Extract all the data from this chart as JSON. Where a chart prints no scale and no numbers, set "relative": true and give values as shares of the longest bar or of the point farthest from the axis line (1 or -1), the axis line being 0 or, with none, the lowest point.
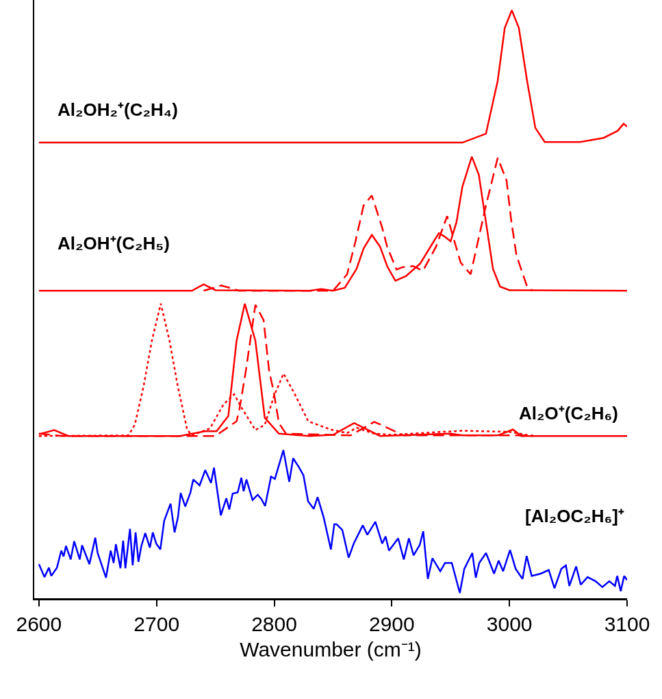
{
  "chart_data": {
    "type": "line",
    "relative": true,
    "xlabel": "Wavenumber (cm⁻¹)",
    "xlim": [
      2596,
      3100
    ],
    "xticks": [
      2600,
      2700,
      2800,
      2900,
      3000,
      3100
    ],
    "grid": false,
    "marker": "none",
    "annotations": [
      "Al₂OH₂⁺(C₂H₄)",
      "Al₂OH⁺(C₂H₅)",
      "Al₂O⁺(C₂H₆)",
      "[Al₂OC₂H₆]⁺"
    ],
    "series": [
      {
        "color": "#ff0000",
        "line_style": "solid",
        "x": [
          2600,
          2960,
          2980,
          2990,
          2996,
          3002,
          3008,
          3015,
          3022,
          3030,
          3060,
          3080,
          3092,
          3097,
          3100
        ],
        "values": [
          0.775,
          0.775,
          0.79,
          0.88,
          0.97,
          1.0,
          0.97,
          0.88,
          0.8,
          0.776,
          0.776,
          0.783,
          0.795,
          0.807,
          0.802
        ]
      },
      {
        "color": "#ff0000",
        "line_style": "solid",
        "x": [
          2600,
          2730,
          2740,
          2750,
          2830,
          2840,
          2850,
          2860,
          2870,
          2876,
          2883,
          2890,
          2896,
          2903,
          2912,
          2924,
          2932,
          2940,
          2945,
          2950,
          2955,
          2960,
          2968,
          2974,
          2980,
          2986,
          2992,
          3000,
          3100
        ],
        "values": [
          0.523,
          0.523,
          0.534,
          0.524,
          0.523,
          0.526,
          0.523,
          0.528,
          0.56,
          0.595,
          0.618,
          0.598,
          0.565,
          0.54,
          0.548,
          0.569,
          0.595,
          0.621,
          0.615,
          0.607,
          0.64,
          0.7,
          0.751,
          0.72,
          0.64,
          0.56,
          0.53,
          0.524,
          0.523
        ]
      },
      {
        "color": "#ff0000",
        "line_style": "dashed",
        "x": [
          2740,
          2755,
          2762,
          2770,
          2850,
          2862,
          2869,
          2876,
          2883,
          2892,
          2896,
          2904,
          2909,
          2918,
          2926.5,
          2937.6,
          2947,
          2958.5,
          2967,
          2980,
          2990,
          2997.5,
          3001.6,
          3006,
          3015,
          3020
        ],
        "values": [
          0.523,
          0.532,
          0.528,
          0.523,
          0.523,
          0.551,
          0.606,
          0.668,
          0.685,
          0.629,
          0.598,
          0.559,
          0.563,
          0.565,
          0.557,
          0.598,
          0.65,
          0.571,
          0.551,
          0.668,
          0.749,
          0.711,
          0.641,
          0.583,
          0.53,
          0.523
        ]
      },
      {
        "color": "#ff0000",
        "line_style": "solid",
        "x": [
          2600,
          2613,
          2625,
          2720,
          2741,
          2751,
          2761,
          2768,
          2775,
          2784,
          2792,
          2804,
          2830,
          2850,
          2868,
          2890,
          2950,
          2960,
          2990,
          3003,
          3010,
          3100
        ],
        "values": [
          0.279,
          0.286,
          0.276,
          0.276,
          0.284,
          0.284,
          0.31,
          0.438,
          0.501,
          0.438,
          0.307,
          0.28,
          0.276,
          0.278,
          0.298,
          0.276,
          0.28,
          0.277,
          0.277,
          0.287,
          0.276,
          0.276
        ]
      },
      {
        "color": "#ff0000",
        "line_style": "dashed",
        "x": [
          2600,
          2620,
          2750,
          2768,
          2770.5,
          2776,
          2784,
          2791,
          2795.6,
          2799.7,
          2804,
          2810,
          2865,
          2885,
          2893,
          2910,
          3020
        ],
        "values": [
          0.28,
          0.276,
          0.276,
          0.301,
          0.322,
          0.388,
          0.499,
          0.473,
          0.388,
          0.35,
          0.298,
          0.28,
          0.277,
          0.3,
          0.293,
          0.277,
          0.277
        ]
      },
      {
        "color": "#ff0000",
        "line_style": "dotted",
        "x": [
          2600,
          2676,
          2681.5,
          2689,
          2696,
          2703.6,
          2711,
          2718,
          2726,
          2730,
          2745.5,
          2757,
          2766,
          2771.7,
          2784,
          2792,
          2800,
          2808,
          2816,
          2829,
          2848,
          2862,
          2870,
          2885,
          2900,
          2960,
          3000,
          3020
        ],
        "values": [
          0.276,
          0.277,
          0.295,
          0.361,
          0.438,
          0.501,
          0.438,
          0.361,
          0.287,
          0.277,
          0.289,
          0.33,
          0.347,
          0.326,
          0.286,
          0.295,
          0.345,
          0.382,
          0.353,
          0.301,
          0.287,
          0.281,
          0.29,
          0.28,
          0.278,
          0.285,
          0.283,
          0.276
        ]
      },
      {
        "color": "#0000ff",
        "line_style": "solid",
        "x": [
          2600,
          2604.7,
          2608.5,
          2610.5,
          2615.3,
          2619,
          2621,
          2623,
          2627,
          2630,
          2634.7,
          2636.7,
          2642.9,
          2647.9,
          2649.9,
          2657,
          2661,
          2663.5,
          2665.4,
          2669.3,
          2671.6,
          2673.5,
          2677.4,
          2679.7,
          2682.2,
          2684.6,
          2687.1,
          2690.4,
          2694.3,
          2696.8,
          2699.7,
          2703.2,
          2706.5,
          2711.9,
          2715.3,
          2718.2,
          2720.5,
          2724.4,
          2728.8,
          2731.2,
          2736.6,
          2741.4,
          2746.3,
          2748.8,
          2754.6,
          2759.3,
          2761.8,
          2764.7,
          2769,
          2772.1,
          2774,
          2776.4,
          2781.6,
          2786,
          2789,
          2792.3,
          2797.3,
          2800.6,
          2807.8,
          2812.8,
          2816.1,
          2821,
          2824.9,
          2828.8,
          2833.6,
          2836.9,
          2842,
          2848.2,
          2851.1,
          2853,
          2857.9,
          2863.3,
          2867.6,
          2875.3,
          2879.2,
          2886,
          2891.8,
          2894.7,
          2897.6,
          2905.4,
          2910.2,
          2914.5,
          2918.5,
          2923.8,
          2926.7,
          2930.6,
          2934.5,
          2941.2,
          2945.2,
          2951,
          2957.8,
          2961.6,
          2968.4,
          2971.4,
          2974.3,
          2980.1,
          2986.9,
          2990.8,
          2994.6,
          3000.5,
          3005.3,
          3011.1,
          3014.6,
          3018.9,
          3026.7,
          3033.4,
          3038.3,
          3044.1,
          3048,
          3050.9,
          3056.7,
          3060.6,
          3066.4,
          3073.2,
          3079,
          3084.9,
          3089.7,
          3091.6,
          3094.6,
          3097.5,
          3100
        ],
        "values": [
          0.058,
          0.036,
          0.052,
          0.038,
          0.052,
          0.081,
          0.071,
          0.089,
          0.066,
          0.097,
          0.066,
          0.09,
          0.058,
          0.103,
          0.077,
          0.035,
          0.081,
          0.06,
          0.092,
          0.051,
          0.098,
          0.051,
          0.118,
          0.056,
          0.112,
          0.062,
          0.089,
          0.111,
          0.086,
          0.112,
          0.093,
          0.083,
          0.132,
          0.161,
          0.112,
          0.138,
          0.179,
          0.156,
          0.18,
          0.202,
          0.192,
          0.218,
          0.196,
          0.222,
          0.141,
          0.17,
          0.151,
          0.178,
          0.18,
          0.205,
          0.182,
          0.202,
          0.167,
          0.176,
          0.169,
          0.157,
          0.207,
          0.203,
          0.252,
          0.198,
          0.238,
          0.223,
          0.209,
          0.165,
          0.152,
          0.172,
          0.138,
          0.083,
          0.126,
          0.126,
          0.116,
          0.069,
          0.093,
          0.124,
          0.108,
          0.13,
          0.093,
          0.105,
          0.081,
          0.102,
          0.066,
          0.102,
          0.073,
          0.091,
          0.114,
          0.033,
          0.068,
          0.046,
          0.06,
          0.06,
          0.009,
          0.05,
          0.077,
          0.035,
          0.06,
          0.077,
          0.042,
          0.064,
          0.046,
          0.082,
          0.05,
          0.033,
          0.072,
          0.038,
          0.042,
          0.048,
          0.017,
          0.05,
          0.056,
          0.021,
          0.054,
          0.023,
          0.036,
          0.029,
          0.019,
          0.029,
          0.021,
          0.038,
          0.012,
          0.038,
          0.031
        ]
      }
    ]
  }
}
